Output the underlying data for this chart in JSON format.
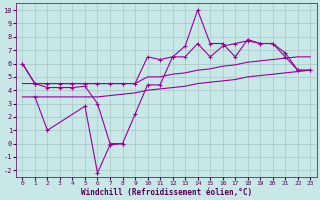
{
  "x": [
    0,
    1,
    2,
    3,
    4,
    5,
    6,
    7,
    8,
    9,
    10,
    11,
    12,
    13,
    14,
    15,
    16,
    17,
    18,
    19,
    20,
    21,
    22,
    23
  ],
  "line_top": [
    6.0,
    4.5,
    4.5,
    4.5,
    4.5,
    4.5,
    4.5,
    4.5,
    4.5,
    4.5,
    6.5,
    6.3,
    6.5,
    6.5,
    7.5,
    6.5,
    7.3,
    7.5,
    7.7,
    7.5,
    7.5,
    6.5,
    5.5,
    5.5
  ],
  "line_upper_env": [
    4.5,
    4.5,
    4.5,
    4.5,
    4.5,
    4.5,
    4.5,
    4.5,
    4.5,
    4.5,
    5.0,
    5.0,
    5.2,
    5.3,
    5.5,
    5.6,
    5.8,
    5.9,
    6.1,
    6.2,
    6.3,
    6.4,
    6.5,
    6.5
  ],
  "line_lower_env": [
    3.5,
    3.5,
    3.5,
    3.5,
    3.5,
    3.5,
    3.5,
    3.6,
    3.7,
    3.8,
    4.0,
    4.1,
    4.2,
    4.3,
    4.5,
    4.6,
    4.7,
    4.8,
    5.0,
    5.1,
    5.2,
    5.3,
    5.4,
    5.5
  ],
  "line_jagged": [
    null,
    3.5,
    1.0,
    null,
    null,
    2.8,
    -2.2,
    -0.1,
    0.0,
    null,
    null,
    null,
    null,
    null,
    null,
    null,
    null,
    null,
    null,
    null,
    null,
    null,
    null,
    null
  ],
  "line_main": [
    6.0,
    4.5,
    4.2,
    4.2,
    4.2,
    4.3,
    3.0,
    0.0,
    0.0,
    2.2,
    4.4,
    4.4,
    6.5,
    7.3,
    10.0,
    7.5,
    7.5,
    6.5,
    7.8,
    7.5,
    7.5,
    6.8,
    5.5,
    5.5
  ],
  "color": "#990099",
  "bg_color": "#c8e8e8",
  "grid_color": "#b0c8c8",
  "xlabel": "Windchill (Refroidissement éolien,°C)",
  "ylim": [
    -2.5,
    10.5
  ],
  "xlim": [
    -0.5,
    23.5
  ],
  "yticks": [
    -2,
    -1,
    0,
    1,
    2,
    3,
    4,
    5,
    6,
    7,
    8,
    9,
    10
  ],
  "xticks": [
    0,
    1,
    2,
    3,
    4,
    5,
    6,
    7,
    8,
    9,
    10,
    11,
    12,
    13,
    14,
    15,
    16,
    17,
    18,
    19,
    20,
    21,
    22,
    23
  ]
}
